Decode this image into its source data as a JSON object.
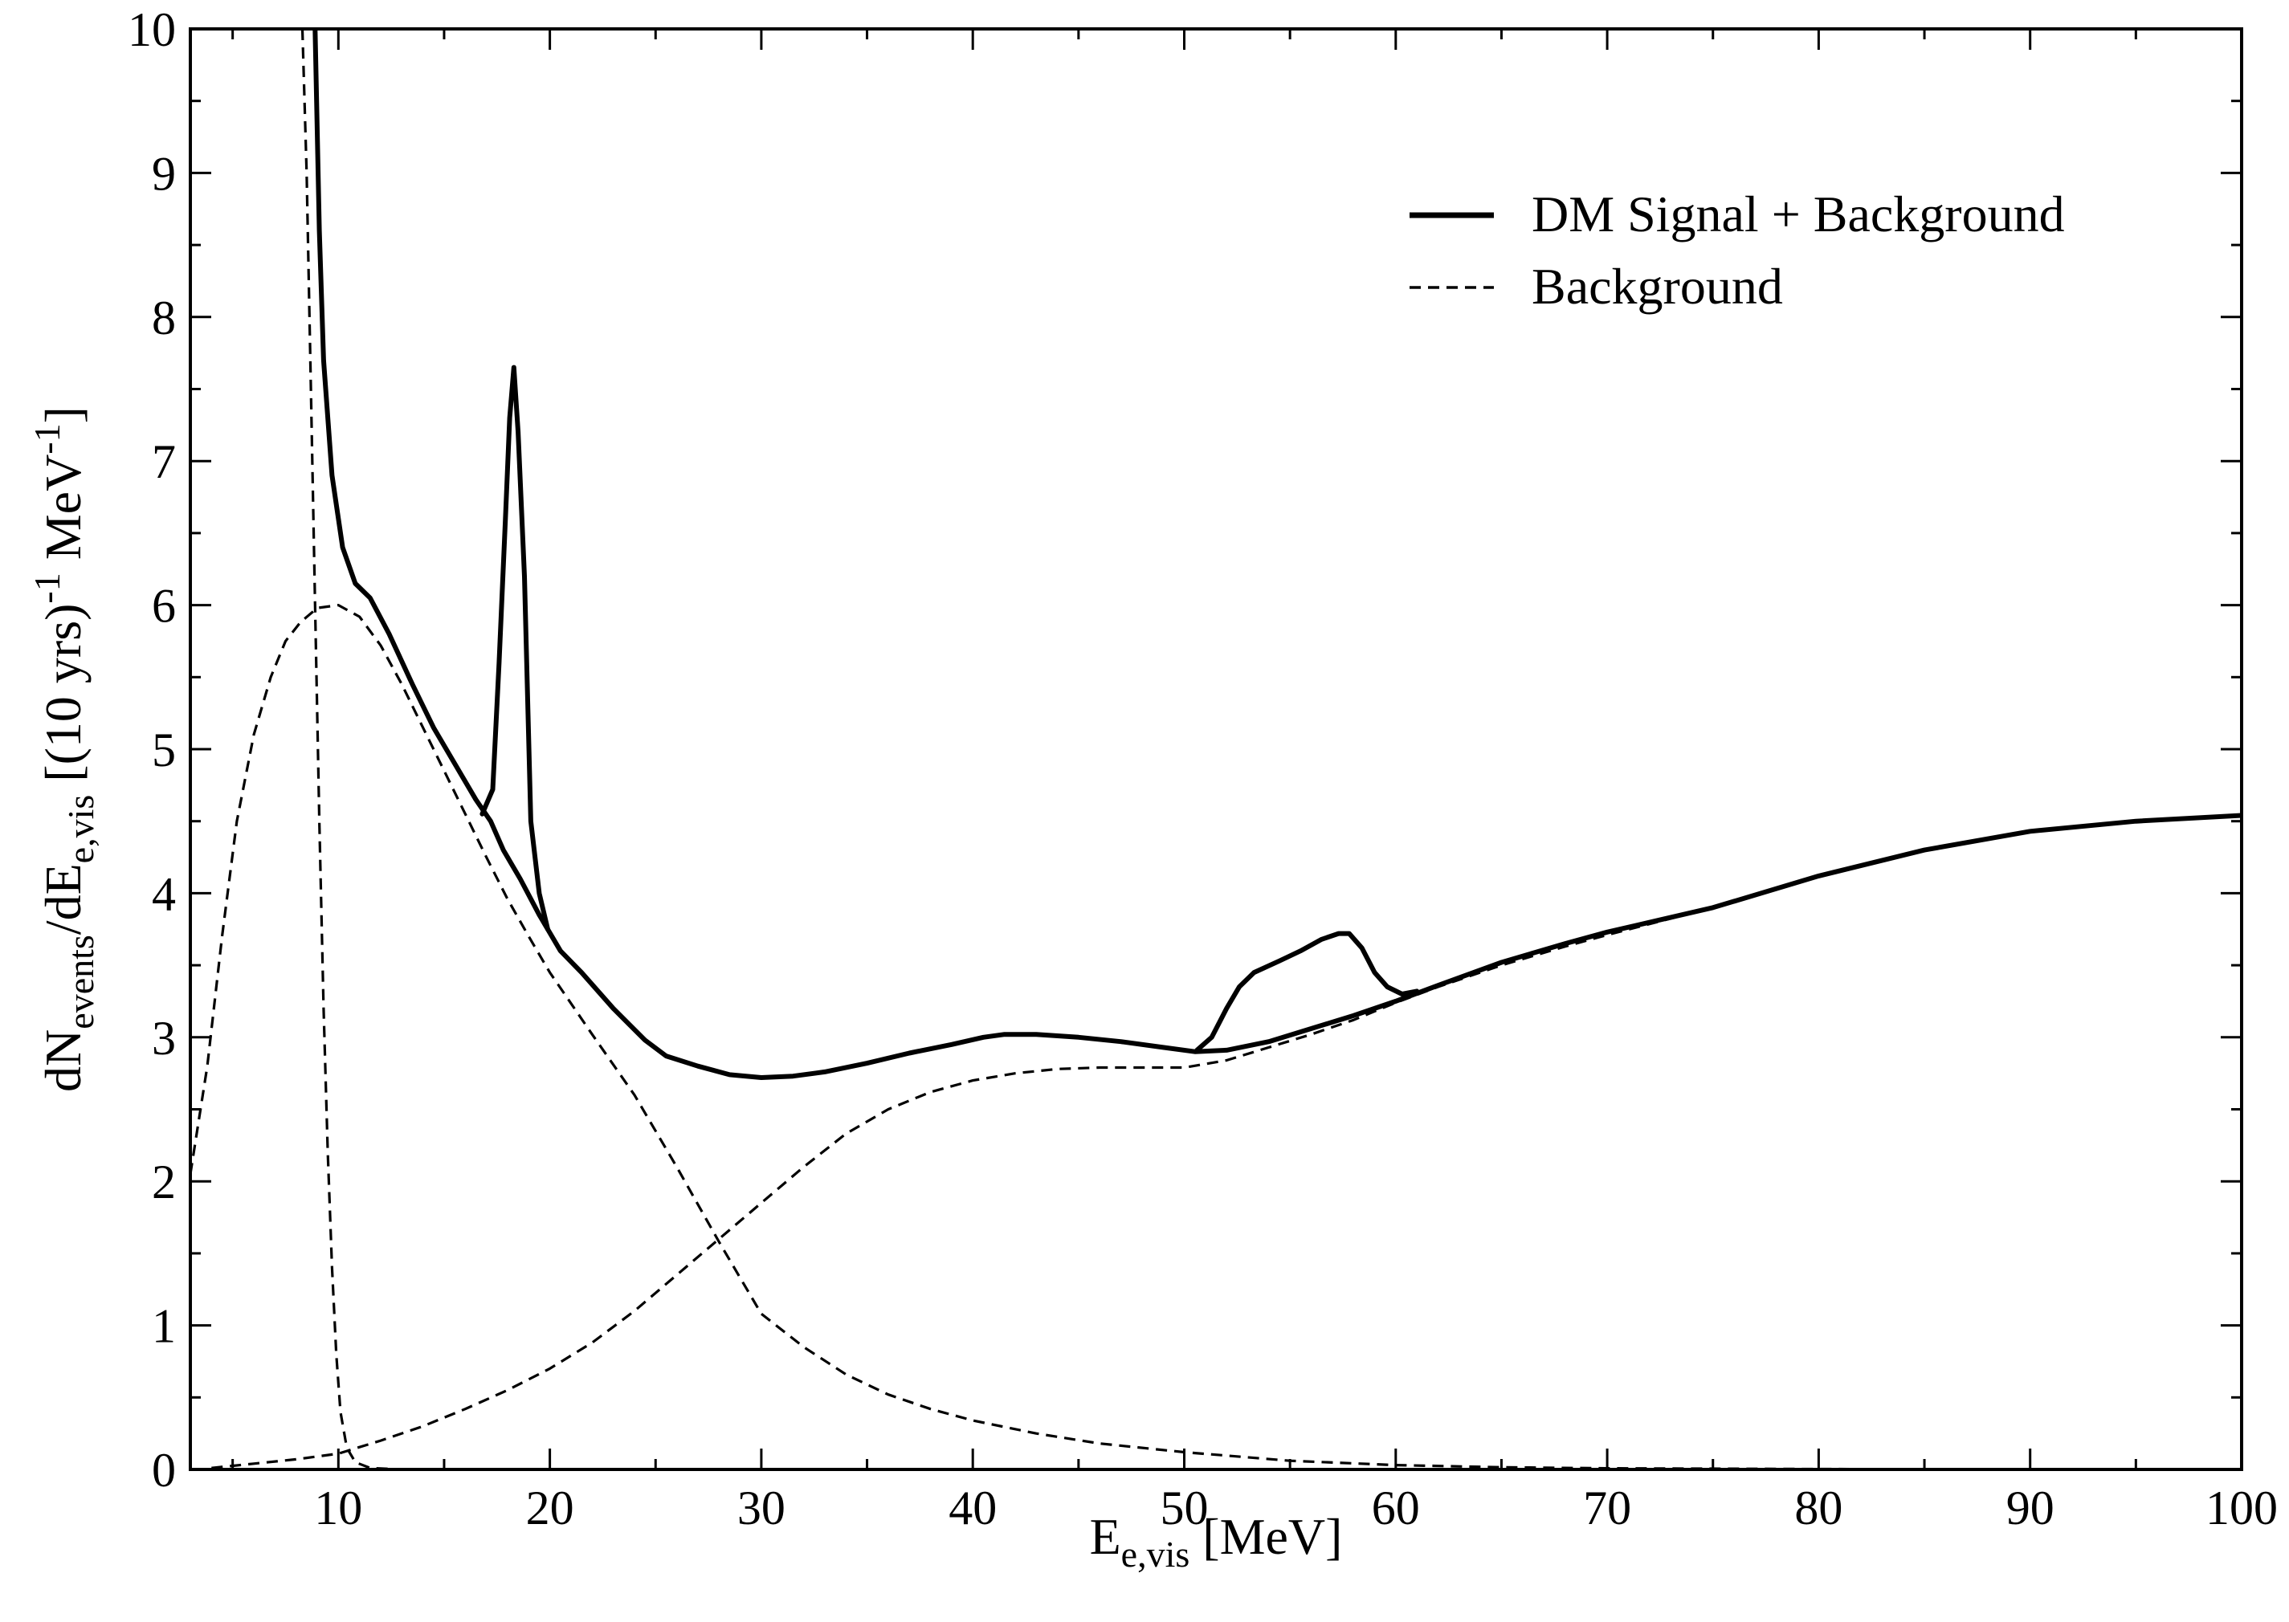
{
  "chart_data": {
    "type": "line",
    "title": "",
    "xlabel": {
      "main": "E",
      "sub": "e,vis",
      "unit": " [MeV]"
    },
    "ylabel": {
      "p1": "dN",
      "s1": "events",
      "p2": "/dE",
      "s2": "e,vis",
      "p3": " [(10 yrs)",
      "sup1": "-1",
      "p4": " MeV",
      "sup2": "-1",
      "p5": "]"
    },
    "xlim": [
      3,
      100
    ],
    "ylim": [
      0,
      10
    ],
    "xticks": [
      "10",
      "20",
      "30",
      "40",
      "50",
      "60",
      "70",
      "80",
      "90",
      "100"
    ],
    "yticks": [
      "0",
      "1",
      "2",
      "3",
      "4",
      "5",
      "6",
      "7",
      "8",
      "9",
      "10"
    ],
    "grid": false,
    "legend_position": "top-right",
    "legend": [
      {
        "label": "DM Signal + Background",
        "style": "solid"
      },
      {
        "label": "Background",
        "style": "dashed"
      }
    ],
    "series": [
      {
        "name": "DM Signal + Background",
        "style": "solid",
        "color": "#000000",
        "points": [
          [
            8.9,
            10
          ],
          [
            9.1,
            8.6
          ],
          [
            9.3,
            7.7
          ],
          [
            9.7,
            6.9
          ],
          [
            10.2,
            6.4
          ],
          [
            10.8,
            6.15
          ],
          [
            11.5,
            6.05
          ],
          [
            12.4,
            5.8
          ],
          [
            13.5,
            5.45
          ],
          [
            14.5,
            5.15
          ],
          [
            15.5,
            4.9
          ],
          [
            16.5,
            4.65
          ],
          [
            17.2,
            4.5
          ],
          [
            17.8,
            4.3
          ],
          [
            18.6,
            4.1
          ],
          [
            19.5,
            3.85
          ],
          [
            20.5,
            3.6
          ],
          [
            21.5,
            3.45
          ],
          [
            23,
            3.2
          ],
          [
            24.5,
            2.98
          ],
          [
            25.5,
            2.87
          ],
          [
            27,
            2.8
          ],
          [
            28.5,
            2.74
          ],
          [
            30,
            2.72
          ],
          [
            31.5,
            2.73
          ],
          [
            33,
            2.76
          ],
          [
            35,
            2.82
          ],
          [
            37,
            2.89
          ],
          [
            39,
            2.95
          ],
          [
            40.5,
            3.0
          ],
          [
            41.5,
            3.02
          ],
          [
            43,
            3.02
          ],
          [
            45,
            3.0
          ],
          [
            47,
            2.97
          ],
          [
            49,
            2.93
          ],
          [
            50.5,
            2.9
          ],
          [
            52,
            2.91
          ],
          [
            54,
            2.97
          ],
          [
            56,
            3.06
          ],
          [
            58,
            3.15
          ],
          [
            60,
            3.25
          ],
          [
            62,
            3.36
          ],
          [
            65,
            3.52
          ],
          [
            68,
            3.65
          ],
          [
            70,
            3.73
          ],
          [
            75,
            3.9
          ],
          [
            80,
            4.12
          ],
          [
            85,
            4.3
          ],
          [
            90,
            4.43
          ],
          [
            95,
            4.5
          ],
          [
            100,
            4.54
          ]
        ]
      },
      {
        "name": "DM Signal + Background",
        "style": "solid",
        "color": "#000000",
        "points": [
          [
            16.8,
            4.55
          ],
          [
            17.3,
            4.72
          ],
          [
            17.6,
            5.6
          ],
          [
            17.9,
            6.6
          ],
          [
            18.1,
            7.3
          ],
          [
            18.3,
            7.65
          ],
          [
            18.5,
            7.2
          ],
          [
            18.8,
            6.2
          ],
          [
            19.1,
            4.5
          ],
          [
            19.5,
            4.0
          ],
          [
            19.9,
            3.75
          ]
        ]
      },
      {
        "name": "DM Signal + Background",
        "style": "solid",
        "color": "#000000",
        "points": [
          [
            50.6,
            2.91
          ],
          [
            51.3,
            3.0
          ],
          [
            52,
            3.2
          ],
          [
            52.6,
            3.35
          ],
          [
            53.3,
            3.45
          ],
          [
            54.5,
            3.53
          ],
          [
            55.5,
            3.6
          ],
          [
            56.5,
            3.68
          ],
          [
            57.3,
            3.72
          ],
          [
            57.8,
            3.72
          ],
          [
            58.4,
            3.62
          ],
          [
            59,
            3.45
          ],
          [
            59.6,
            3.35
          ],
          [
            60.3,
            3.3
          ],
          [
            61,
            3.32
          ]
        ]
      },
      {
        "name": "Background",
        "style": "dashed",
        "color": "#000000",
        "points": [
          [
            3,
            2.05
          ],
          [
            3.8,
            2.8
          ],
          [
            4.5,
            3.7
          ],
          [
            5.2,
            4.5
          ],
          [
            6,
            5.1
          ],
          [
            6.8,
            5.5
          ],
          [
            7.5,
            5.75
          ],
          [
            8.2,
            5.88
          ],
          [
            9,
            5.98
          ],
          [
            10,
            6.0
          ],
          [
            11,
            5.92
          ],
          [
            12,
            5.72
          ],
          [
            13,
            5.45
          ],
          [
            14,
            5.15
          ],
          [
            15,
            4.85
          ],
          [
            16,
            4.55
          ],
          [
            17,
            4.25
          ],
          [
            18,
            3.96
          ],
          [
            19,
            3.7
          ],
          [
            20,
            3.45
          ],
          [
            22,
            3.02
          ],
          [
            24,
            2.6
          ],
          [
            26,
            2.1
          ],
          [
            28,
            1.58
          ],
          [
            30,
            1.08
          ],
          [
            32,
            0.85
          ],
          [
            34,
            0.66
          ],
          [
            36,
            0.52
          ],
          [
            38,
            0.42
          ],
          [
            40,
            0.34
          ],
          [
            43,
            0.25
          ],
          [
            46,
            0.18
          ],
          [
            50,
            0.12
          ],
          [
            55,
            0.06
          ],
          [
            60,
            0.03
          ],
          [
            65,
            0.015
          ],
          [
            70,
            0.008
          ],
          [
            80,
            0.003
          ],
          [
            90,
            0.001
          ],
          [
            100,
            0.0
          ]
        ]
      },
      {
        "name": "Background",
        "style": "dashed",
        "color": "#000000",
        "points": [
          [
            4,
            0.01
          ],
          [
            6,
            0.04
          ],
          [
            8,
            0.07
          ],
          [
            10,
            0.11
          ],
          [
            12,
            0.2
          ],
          [
            14,
            0.3
          ],
          [
            16,
            0.42
          ],
          [
            18,
            0.55
          ],
          [
            20,
            0.7
          ],
          [
            22,
            0.88
          ],
          [
            24,
            1.1
          ],
          [
            26,
            1.35
          ],
          [
            28,
            1.6
          ],
          [
            30,
            1.85
          ],
          [
            32,
            2.1
          ],
          [
            34,
            2.33
          ],
          [
            36,
            2.5
          ],
          [
            38,
            2.62
          ],
          [
            40,
            2.7
          ],
          [
            42,
            2.75
          ],
          [
            44,
            2.78
          ],
          [
            46,
            2.79
          ],
          [
            48,
            2.79
          ],
          [
            50,
            2.79
          ],
          [
            52,
            2.84
          ],
          [
            54,
            2.93
          ],
          [
            56,
            3.02
          ],
          [
            58,
            3.12
          ],
          [
            60,
            3.24
          ],
          [
            62,
            3.35
          ],
          [
            65,
            3.5
          ],
          [
            68,
            3.63
          ],
          [
            70,
            3.71
          ],
          [
            75,
            3.9
          ],
          [
            80,
            4.12
          ],
          [
            85,
            4.3
          ],
          [
            90,
            4.43
          ],
          [
            95,
            4.5
          ],
          [
            100,
            4.54
          ]
        ]
      },
      {
        "name": "Background",
        "style": "dashed",
        "color": "#000000",
        "points": [
          [
            8.3,
            10
          ],
          [
            8.5,
            9.0
          ],
          [
            8.7,
            7.5
          ],
          [
            8.9,
            6.0
          ],
          [
            9.1,
            4.5
          ],
          [
            9.3,
            3.2
          ],
          [
            9.5,
            2.2
          ],
          [
            9.7,
            1.4
          ],
          [
            9.9,
            0.8
          ],
          [
            10.1,
            0.4
          ],
          [
            10.4,
            0.15
          ],
          [
            10.8,
            0.05
          ],
          [
            11.5,
            0.01
          ],
          [
            13,
            0.0
          ],
          [
            20,
            0.0
          ]
        ]
      }
    ]
  }
}
